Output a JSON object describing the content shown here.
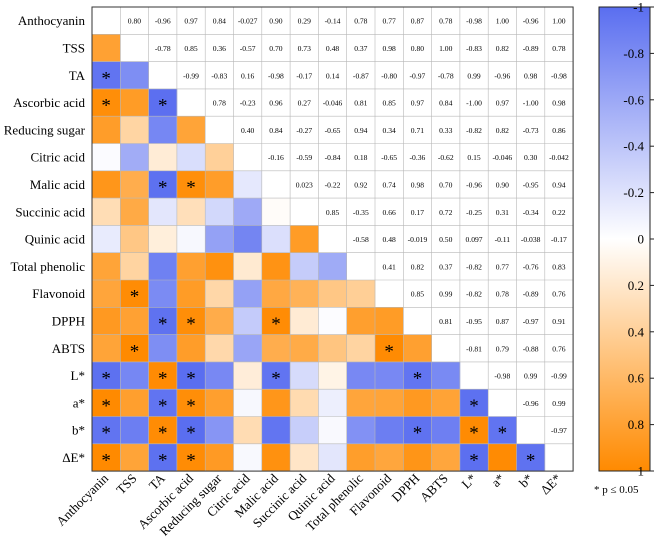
{
  "chart_data": {
    "type": "heatmap",
    "title": "",
    "variables": [
      "Anthocyanin",
      "TSS",
      "TA",
      "Ascorbic acid",
      "Reducing sugar",
      "Citric acid",
      "Malic acid",
      "Succinic acid",
      "Quinic acid",
      "Total phenolic",
      "Flavonoid",
      "DPPH",
      "ABTS",
      "L*",
      "a*",
      "b*",
      "ΔE*"
    ],
    "matrix": [
      [
        null,
        "0.80",
        "-0.96",
        "0.97",
        "0.84",
        "-0.027",
        "0.90",
        "0.29",
        "-0.14",
        "0.78",
        "0.77",
        "0.87",
        "0.78",
        "-0.98",
        "1.00",
        "-0.96",
        "1.00"
      ],
      [
        "0.80",
        null,
        "-0.78",
        "0.85",
        "0.36",
        "-0.57",
        "0.70",
        "0.73",
        "0.48",
        "0.37",
        "0.98",
        "0.80",
        "1.00",
        "-0.83",
        "0.82",
        "-0.89",
        "0.78"
      ],
      [
        "-0.96",
        "-0.78",
        null,
        "-0.99",
        "-0.83",
        "0.16",
        "-0.98",
        "-0.17",
        "0.14",
        "-0.87",
        "-0.80",
        "-0.97",
        "-0.78",
        "0.99",
        "-0.96",
        "0.98",
        "-0.98"
      ],
      [
        "0.97",
        "0.85",
        "-0.99",
        null,
        "0.78",
        "-0.23",
        "0.96",
        "0.27",
        "-0.046",
        "0.81",
        "0.85",
        "0.97",
        "0.84",
        "-1.00",
        "0.97",
        "-1.00",
        "0.98"
      ],
      [
        "0.84",
        "0.36",
        "-0.83",
        "0.78",
        null,
        "0.40",
        "0.84",
        "-0.27",
        "-0.65",
        "0.94",
        "0.34",
        "0.71",
        "0.33",
        "-0.82",
        "0.82",
        "-0.73",
        "0.86"
      ],
      [
        "-0.027",
        "-0.57",
        "0.16",
        "-0.23",
        "0.40",
        null,
        "-0.16",
        "-0.59",
        "-0.84",
        "0.18",
        "-0.65",
        "-0.36",
        "-0.62",
        "0.15",
        "-0.046",
        "0.30",
        "-0.042"
      ],
      [
        "0.90",
        "0.70",
        "-0.98",
        "0.96",
        "0.84",
        "-0.16",
        null,
        "0.023",
        "-0.22",
        "0.92",
        "0.74",
        "0.98",
        "0.70",
        "-0.96",
        "0.90",
        "-0.95",
        "0.94"
      ],
      [
        "0.29",
        "0.73",
        "-0.17",
        "0.27",
        "-0.27",
        "-0.59",
        "0.023",
        null,
        "0.85",
        "-0.35",
        "0.66",
        "0.17",
        "0.72",
        "-0.25",
        "0.31",
        "-0.34",
        "0.22"
      ],
      [
        "-0.14",
        "0.48",
        "0.14",
        "-0.046",
        "-0.65",
        "-0.84",
        "-0.22",
        "0.85",
        null,
        "-0.58",
        "0.48",
        "-0.019",
        "0.50",
        "0.097",
        "-0.11",
        "-0.038",
        "-0.17"
      ],
      [
        "0.78",
        "0.37",
        "-0.87",
        "0.81",
        "0.94",
        "0.18",
        "0.92",
        "-0.35",
        "-0.58",
        null,
        "0.41",
        "0.82",
        "0.37",
        "-0.82",
        "0.77",
        "-0.76",
        "0.83"
      ],
      [
        "0.77",
        "0.98",
        "-0.80",
        "0.85",
        "0.34",
        "-0.65",
        "0.74",
        "0.66",
        "0.48",
        "0.41",
        null,
        "0.85",
        "0.99",
        "-0.82",
        "0.78",
        "-0.89",
        "0.76"
      ],
      [
        "0.87",
        "0.80",
        "-0.97",
        "0.97",
        "0.71",
        "-0.36",
        "0.98",
        "0.17",
        "-0.019",
        "0.82",
        "0.85",
        null,
        "0.81",
        "-0.95",
        "0.87",
        "-0.97",
        "0.91"
      ],
      [
        "0.78",
        "1.00",
        "-0.78",
        "0.84",
        "0.33",
        "-0.62",
        "0.70",
        "0.72",
        "0.50",
        "0.37",
        "0.99",
        "0.81",
        null,
        "-0.81",
        "0.79",
        "-0.88",
        "0.76"
      ],
      [
        "-0.98",
        "-0.83",
        "0.99",
        "-1.00",
        "-0.82",
        "0.15",
        "-0.96",
        "-0.25",
        "0.097",
        "-0.82",
        "-0.82",
        "-0.95",
        "-0.81",
        null,
        "-0.98",
        "0.99",
        "-0.99"
      ],
      [
        "1.00",
        "0.82",
        "-0.96",
        "0.97",
        "0.82",
        "-0.046",
        "0.90",
        "0.31",
        "-0.11",
        "0.77",
        "0.78",
        "0.87",
        "0.79",
        "-0.98",
        null,
        "-0.96",
        "0.99"
      ],
      [
        "-0.96",
        "-0.89",
        "0.98",
        "-1.00",
        "-0.73",
        "0.30",
        "-0.95",
        "-0.34",
        "-0.038",
        "-0.76",
        "-0.89",
        "-0.97",
        "-0.88",
        "0.99",
        "-0.96",
        null,
        "-0.97"
      ],
      [
        "1.00",
        "0.78",
        "-0.98",
        "0.98",
        "0.86",
        "-0.042",
        "0.94",
        "0.22",
        "-0.17",
        "0.83",
        "0.76",
        "0.91",
        "0.76",
        "-0.99",
        "0.99",
        "-0.97",
        null
      ]
    ],
    "significant": [
      [
        2,
        0
      ],
      [
        3,
        0
      ],
      [
        3,
        2
      ],
      [
        6,
        2
      ],
      [
        6,
        3
      ],
      [
        10,
        1
      ],
      [
        11,
        2
      ],
      [
        11,
        3
      ],
      [
        11,
        6
      ],
      [
        12,
        1
      ],
      [
        12,
        10
      ],
      [
        13,
        0
      ],
      [
        13,
        2
      ],
      [
        13,
        3
      ],
      [
        13,
        6
      ],
      [
        13,
        11
      ],
      [
        14,
        0
      ],
      [
        14,
        2
      ],
      [
        14,
        3
      ],
      [
        14,
        13
      ],
      [
        15,
        0
      ],
      [
        15,
        2
      ],
      [
        15,
        3
      ],
      [
        15,
        11
      ],
      [
        15,
        13
      ],
      [
        15,
        14
      ],
      [
        16,
        0
      ],
      [
        16,
        2
      ],
      [
        16,
        3
      ],
      [
        16,
        13
      ],
      [
        16,
        15
      ]
    ],
    "significance_marker": "*",
    "color_scale": {
      "min": -1,
      "max": 1,
      "negative_color": "#5a6ef0",
      "positive_color": "#ff8a00",
      "neutral_color": "#ffffff"
    },
    "colorbar_ticks": [
      "-1",
      "-0.8",
      "-0.6",
      "-0.4",
      "-0.2",
      "0",
      "0.2",
      "0.4",
      "0.6",
      "0.8",
      "1"
    ],
    "footnote": "* p ≤ 0.05",
    "layout_note": "lower triangle = color-coded cells with significance stars; upper triangle = correlation coefficient values"
  }
}
